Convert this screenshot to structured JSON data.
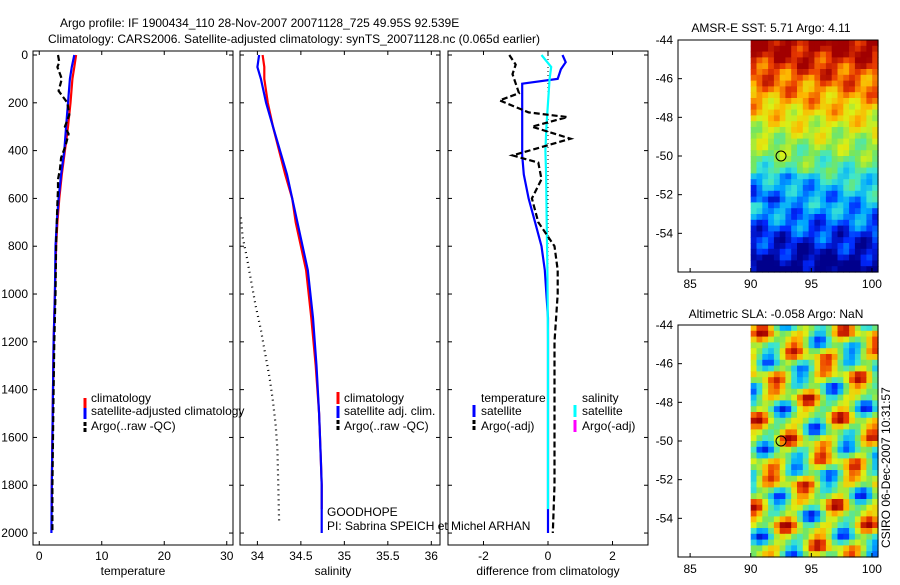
{
  "title_line1": "Argo profile: IF 1900434_110 28-Nov-2007 20071128_725 49.95S 92.539E",
  "title_line2": "Climatology: CARS2006. Satellite-adjusted climatology: synTS_20071128.nc (0.065d earlier)",
  "side_stamp": "CSIRO 06-Dec-2007 10:31:57",
  "colors": {
    "climatology": "#ff0000",
    "satellite": "#0000ff",
    "argo": "#000000",
    "salinity_sat": "#00ffff",
    "salinity_argo": "#ff00ff"
  },
  "chart_data": [
    {
      "id": "temperature",
      "type": "line",
      "xlabel": "temperature",
      "xlim": [
        -1,
        31
      ],
      "ylim": [
        2050,
        0
      ],
      "xticks": [
        0,
        10,
        20,
        30
      ],
      "yticks": [
        0,
        200,
        400,
        600,
        800,
        1000,
        1200,
        1400,
        1600,
        1800,
        2000
      ],
      "legend": [
        "climatology",
        "satellite-adjusted climatology",
        "Argo(..raw -QC)"
      ],
      "series": [
        {
          "name": "climatology",
          "color": "red",
          "dash": "",
          "x": [
            5.9,
            5.6,
            5.3,
            5.0,
            4.6,
            4.1,
            3.6,
            3.2,
            2.9,
            2.7,
            2.5,
            2.3,
            2.2,
            2.1,
            2.0,
            2.0
          ],
          "y": [
            0,
            50,
            100,
            200,
            300,
            400,
            500,
            600,
            700,
            800,
            1000,
            1200,
            1400,
            1600,
            1800,
            1900
          ]
        },
        {
          "name": "satellite",
          "color": "blue",
          "dash": "",
          "x": [
            5.6,
            5.2,
            4.9,
            4.6,
            4.3,
            4.0,
            3.5,
            3.1,
            2.8,
            2.6,
            2.5,
            2.3,
            2.2,
            2.1,
            2.0,
            1.95
          ],
          "y": [
            0,
            50,
            100,
            200,
            300,
            400,
            500,
            600,
            700,
            800,
            1000,
            1200,
            1400,
            1600,
            1800,
            2000
          ]
        },
        {
          "name": "argo",
          "color": "black",
          "dash": "6,3",
          "x": [
            3.0,
            3.2,
            2.9,
            3.6,
            3.1,
            4.5,
            4.8,
            4.1,
            4.7,
            4.2,
            3.5,
            3.3,
            3.0,
            3.0,
            2.9,
            2.8,
            2.7,
            2.6,
            2.4,
            2.3,
            2.2,
            2.1,
            2.1
          ],
          "y": [
            0,
            30,
            50,
            100,
            150,
            200,
            250,
            300,
            330,
            380,
            430,
            480,
            520,
            560,
            620,
            700,
            800,
            1000,
            1200,
            1400,
            1600,
            1800,
            2000
          ]
        }
      ]
    },
    {
      "id": "salinity",
      "type": "line",
      "xlabel": "salinity",
      "xlim": [
        33.8,
        36.1
      ],
      "ylim": [
        2050,
        0
      ],
      "xticks": [
        34,
        34.5,
        35,
        35.5,
        36
      ],
      "xtick_labels": [
        "34",
        "34.5",
        "35",
        "35.5",
        "36"
      ],
      "legend": [
        "climatology",
        "satellite adj. clim.",
        "Argo(..raw -QC)"
      ],
      "annotation_1": "GOODHOPE",
      "annotation_2": "PI: Sabrina SPEICH et Michel ARHAN",
      "series": [
        {
          "name": "climatology",
          "color": "red",
          "dash": "",
          "x": [
            34.06,
            34.08,
            34.08,
            34.12,
            34.18,
            34.25,
            34.32,
            34.4,
            34.44,
            34.5,
            34.56,
            34.62,
            34.67,
            34.71,
            34.73,
            34.74,
            34.74
          ],
          "y": [
            0,
            50,
            100,
            200,
            300,
            400,
            500,
            600,
            700,
            800,
            900,
            1100,
            1300,
            1500,
            1700,
            1800,
            1900
          ]
        },
        {
          "name": "satellite",
          "color": "blue",
          "dash": "",
          "x": [
            34.02,
            34.0,
            34.04,
            34.1,
            34.18,
            34.26,
            34.34,
            34.4,
            34.46,
            34.52,
            34.58,
            34.64,
            34.68,
            34.71,
            34.73,
            34.74,
            34.74
          ],
          "y": [
            0,
            50,
            100,
            200,
            300,
            400,
            500,
            600,
            700,
            800,
            900,
            1100,
            1300,
            1500,
            1700,
            1800,
            2000
          ]
        },
        {
          "name": "argo",
          "color": "black",
          "dash": "1,4",
          "x": [
            33.81,
            33.83,
            33.88,
            33.93,
            33.98,
            34.04,
            34.09,
            34.14,
            34.18,
            34.21,
            34.23,
            34.24,
            34.25
          ],
          "y": [
            680,
            760,
            850,
            950,
            1050,
            1150,
            1250,
            1350,
            1450,
            1550,
            1650,
            1800,
            1950
          ]
        }
      ]
    },
    {
      "id": "difference",
      "type": "line",
      "xlabel": "difference from climatology",
      "xlim": [
        -3.1,
        3.1
      ],
      "ylim": [
        2050,
        0
      ],
      "xticks": [
        -2,
        0,
        2
      ],
      "legend_temperature": [
        "temperature",
        "satellite",
        "Argo(-adj)"
      ],
      "legend_salinity": [
        "salinity",
        "satellite",
        "Argo(-adj)"
      ],
      "series": [
        {
          "name": "zero",
          "color": "black",
          "dash": "1,3",
          "x": [
            0,
            0
          ],
          "y": [
            0,
            2000
          ]
        },
        {
          "name": "temp satellite",
          "color": "blue",
          "dash": "",
          "x": [
            0.45,
            0.55,
            0.4,
            0.3,
            -0.8,
            -0.8,
            -0.8,
            -0.75,
            -0.6,
            -0.4,
            -0.2,
            -0.1,
            0.0,
            0.0,
            0.0,
            0.0
          ],
          "y": [
            0,
            30,
            60,
            100,
            120,
            350,
            420,
            500,
            600,
            700,
            800,
            900,
            1100,
            1400,
            1700,
            2000
          ]
        },
        {
          "name": "sal satellite",
          "color": "cyan",
          "dash": "",
          "x": [
            -0.2,
            0.1,
            0.05,
            0.0,
            -0.05,
            -0.08,
            -0.06,
            -0.04,
            -0.02,
            0.0,
            0.0,
            0.0
          ],
          "y": [
            0,
            50,
            100,
            200,
            300,
            400,
            500,
            700,
            900,
            1200,
            1500,
            1900
          ]
        },
        {
          "name": "temp argo",
          "color": "black",
          "dash": "6,3",
          "x": [
            -1.2,
            -1.0,
            -1.1,
            -0.9,
            -1.5,
            -0.6,
            0.6,
            -0.5,
            0.7,
            -1.1,
            -0.3,
            -0.2,
            -0.5,
            -0.3,
            0.2,
            0.3,
            0.3,
            0.2,
            0.2,
            0.2,
            0.15
          ],
          "y": [
            0,
            40,
            80,
            160,
            190,
            240,
            260,
            300,
            350,
            420,
            450,
            520,
            600,
            700,
            800,
            900,
            1000,
            1200,
            1500,
            1800,
            2000
          ]
        }
      ]
    },
    {
      "id": "amsre_sst",
      "type": "heatmap",
      "title": "AMSR-E SST: 5.71 Argo: 4.11",
      "xlim": [
        84,
        100.5
      ],
      "ylim": [
        -56,
        -44
      ],
      "xticks": [
        85,
        90,
        95,
        100
      ],
      "yticks": [
        -44,
        -46,
        -48,
        -50,
        -52,
        -54
      ],
      "data_xrange": [
        90,
        100.5
      ],
      "marker": [
        92.5,
        -50.0
      ]
    },
    {
      "id": "altimetric_sla",
      "type": "heatmap",
      "title": "Altimetric SLA: -0.058 Argo: NaN",
      "xlim": [
        84,
        100.5
      ],
      "ylim": [
        -56,
        -44
      ],
      "xticks": [
        85,
        90,
        95,
        100
      ],
      "yticks": [
        -44,
        -46,
        -48,
        -50,
        -52,
        -54
      ],
      "data_xrange": [
        90,
        100.5
      ],
      "marker": [
        92.5,
        -50.0
      ]
    }
  ]
}
